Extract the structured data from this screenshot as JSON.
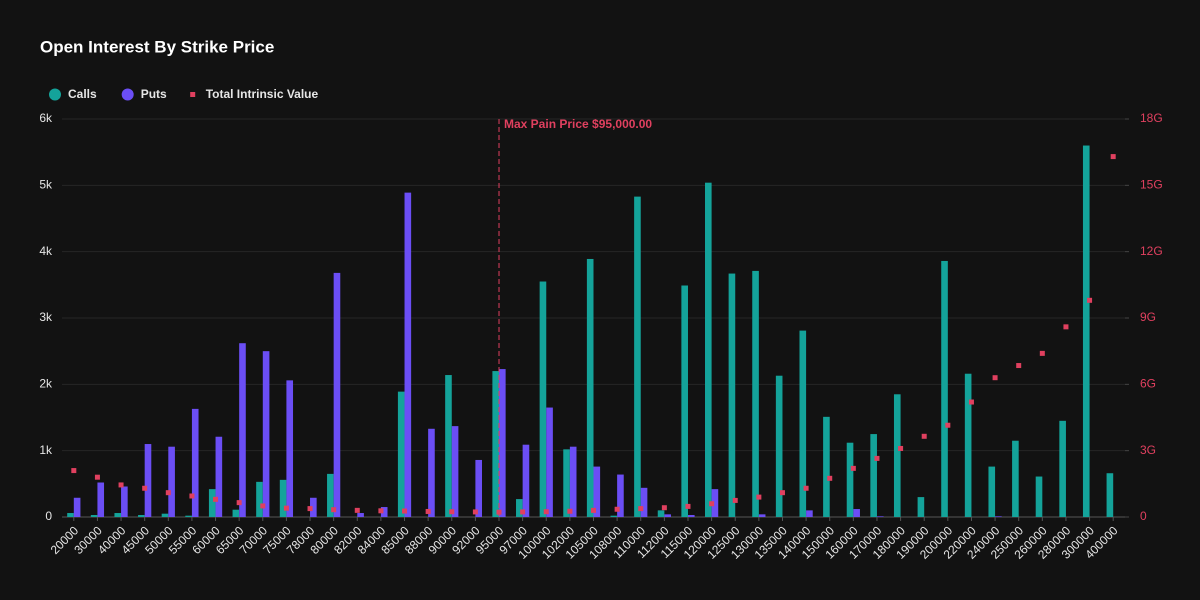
{
  "chart_data": {
    "type": "bar",
    "title": "Open Interest By Strike Price",
    "categories": [
      "20000",
      "30000",
      "40000",
      "45000",
      "50000",
      "55000",
      "60000",
      "65000",
      "70000",
      "75000",
      "78000",
      "80000",
      "82000",
      "84000",
      "85000",
      "88000",
      "90000",
      "92000",
      "95000",
      "97000",
      "100000",
      "102000",
      "105000",
      "108000",
      "110000",
      "112000",
      "115000",
      "120000",
      "125000",
      "130000",
      "135000",
      "140000",
      "150000",
      "160000",
      "170000",
      "180000",
      "190000",
      "200000",
      "220000",
      "240000",
      "250000",
      "260000",
      "280000",
      "300000",
      "400000"
    ],
    "series": [
      {
        "name": "Calls",
        "color": "#14a39a",
        "values": [
          60,
          30,
          60,
          30,
          50,
          20,
          420,
          110,
          530,
          560,
          0,
          650,
          0,
          0,
          1890,
          0,
          2140,
          0,
          2200,
          270,
          3550,
          1020,
          3890,
          20,
          4830,
          100,
          3490,
          5040,
          3670,
          3710,
          2130,
          2810,
          1510,
          1120,
          1250,
          1850,
          300,
          3860,
          2160,
          760,
          1150,
          610,
          1450,
          5600,
          660
        ]
      },
      {
        "name": "Puts",
        "color": "#6b4ef5",
        "values": [
          290,
          520,
          460,
          1100,
          1060,
          1630,
          1210,
          2620,
          2500,
          2060,
          290,
          3680,
          60,
          150,
          4890,
          1330,
          1370,
          860,
          2230,
          1090,
          1650,
          1060,
          760,
          640,
          440,
          40,
          30,
          420,
          0,
          40,
          0,
          100,
          0,
          120,
          10,
          0,
          0,
          0,
          0,
          10,
          0,
          0,
          0,
          0,
          0
        ]
      },
      {
        "name": "Total Intrinsic Value",
        "color": "#e0405f",
        "axis": "y2",
        "values": [
          2100000000.0,
          1800000000.0,
          1450000000.0,
          1300000000.0,
          1100000000.0,
          950000000.0,
          800000000.0,
          650000000.0,
          500000000.0,
          400000000.0,
          380000000.0,
          330000000.0,
          300000000.0,
          280000000.0,
          270000000.0,
          250000000.0,
          240000000.0,
          230000000.0,
          220000000.0,
          230000000.0,
          240000000.0,
          260000000.0,
          300000000.0,
          350000000.0,
          380000000.0,
          420000000.0,
          480000000.0,
          600000000.0,
          750000000.0,
          900000000.0,
          1100000000.0,
          1300000000.0,
          1750000000.0,
          2200000000.0,
          2650000000.0,
          3100000000.0,
          3650000000.0,
          4150000000.0,
          5200000000.0,
          6300000000.0,
          6850000000.0,
          7400000000.0,
          8600000000.0,
          9800000000.0,
          16300000000.0
        ]
      }
    ],
    "ylim": [
      0,
      6000
    ],
    "yticks": [
      0,
      {
        "value": 1000,
        "label": "1k"
      },
      {
        "value": 2000,
        "label": "2k"
      },
      {
        "value": 3000,
        "label": "3k"
      },
      {
        "value": 4000,
        "label": "4k"
      },
      {
        "value": 5000,
        "label": "5k"
      },
      {
        "value": 6000,
        "label": "6k"
      }
    ],
    "y2lim": [
      0,
      18000000000
    ],
    "y2ticks": [
      0,
      {
        "value": 3000000000,
        "label": "3G"
      },
      {
        "value": 6000000000,
        "label": "6G"
      },
      {
        "value": 9000000000,
        "label": "9G"
      },
      {
        "value": 12000000000,
        "label": "12G"
      },
      {
        "value": 15000000000,
        "label": "15G"
      },
      {
        "value": 18000000000,
        "label": "18G"
      }
    ],
    "grid": true,
    "legend": "top-left",
    "annotation": {
      "label": "Max Pain Price $95,000.00",
      "x": "95000",
      "color": "#e0405f"
    }
  }
}
